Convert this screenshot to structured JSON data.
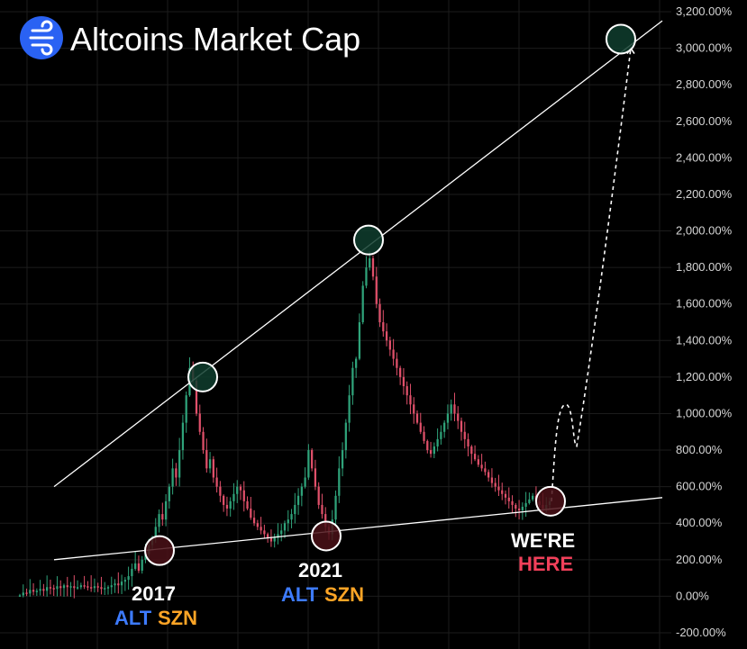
{
  "title": "Altcoins Market Cap",
  "colors": {
    "background": "#000000",
    "grid": "#1c1c1c",
    "up_candle": "#2fa37a",
    "down_candle": "#e0506a",
    "trendline": "#ffffff",
    "peak_marker_fill": "#0f3d2e",
    "low_marker_fill": "#4a1018",
    "logo_blue": "#2a62f3",
    "alt_text": "#3d7bff",
    "szn_text": "#ffa526",
    "here_text": "#f2405a"
  },
  "logo_icon": "wind-lines-icon",
  "chart_data": {
    "type": "candlestick",
    "title": "Altcoins Market Cap",
    "y_axis": {
      "position": "right",
      "ylim": [
        -200,
        3200
      ],
      "ticks": [
        "3,200.00%",
        "3,000.00%",
        "2,800.00%",
        "2,600.00%",
        "2,400.00%",
        "2,200.00%",
        "2,000.00%",
        "1,800.00%",
        "1,600.00%",
        "1,400.00%",
        "1,200.00%",
        "1,000.00%",
        "800.00%",
        "600.00%",
        "400.00%",
        "200.00%",
        "0.00%",
        "-200.00%"
      ],
      "tick_values": [
        3200,
        3000,
        2800,
        2600,
        2400,
        2200,
        2000,
        1800,
        1600,
        1400,
        1200,
        1000,
        800,
        600,
        400,
        200,
        0,
        -200
      ]
    },
    "grid": true,
    "series": [
      {
        "candle_values": [
          5,
          20,
          15,
          35,
          25,
          30,
          40,
          30,
          50,
          45,
          40,
          55,
          45,
          60,
          50,
          55,
          45,
          50,
          60,
          55,
          50,
          45,
          55,
          50,
          40,
          45,
          50,
          60,
          70,
          60,
          80,
          90,
          110,
          150,
          180,
          140,
          200,
          230,
          280,
          320,
          380,
          450,
          420,
          520,
          600,
          700,
          650,
          800,
          950,
          1100,
          1250,
          1180,
          1000,
          900,
          800,
          700,
          750,
          650,
          600,
          550,
          500,
          480,
          520,
          560,
          600,
          580,
          520,
          480,
          430,
          400,
          380,
          360,
          340,
          320,
          300,
          320,
          340,
          360,
          400,
          420,
          450,
          500,
          550,
          600,
          650,
          800,
          700,
          600,
          500,
          450,
          380,
          340,
          420,
          550,
          700,
          800,
          950,
          1100,
          1250,
          1300,
          1500,
          1700,
          1800,
          1850,
          1750,
          1600,
          1500,
          1450,
          1400,
          1350,
          1300,
          1250,
          1200,
          1150,
          1100,
          1050,
          1000,
          950,
          900,
          850,
          800,
          780,
          820,
          860,
          900,
          950,
          1000,
          1050,
          1000,
          960,
          900,
          860,
          820,
          780,
          750,
          720,
          700,
          680,
          650,
          620,
          600,
          580,
          560,
          540,
          520,
          500,
          480,
          470,
          490,
          510,
          530,
          550,
          520,
          500,
          480,
          500,
          520
        ]
      }
    ],
    "trendlines": [
      {
        "name": "upper",
        "points": [
          [
            0,
            600
          ],
          [
            1,
            3150
          ]
        ]
      },
      {
        "name": "lower",
        "points": [
          [
            0,
            200
          ],
          [
            1,
            540
          ]
        ]
      }
    ],
    "markers": [
      {
        "kind": "peak",
        "value": 1200
      },
      {
        "kind": "peak",
        "value": 1950
      },
      {
        "kind": "peak",
        "value": 3050
      },
      {
        "kind": "low",
        "value": 250
      },
      {
        "kind": "low",
        "value": 330
      },
      {
        "kind": "low",
        "value": 520
      }
    ],
    "projection": {
      "from": 520,
      "wave_high": 1050,
      "wave_low": 820,
      "to": 3000
    }
  },
  "annotations": {
    "year_2017": "2017",
    "alt_2017": "ALT",
    "szn_2017": "SZN",
    "year_2021": "2021",
    "alt_2021": "ALT",
    "szn_2021": "SZN",
    "were": "WE'RE",
    "here": "HERE"
  }
}
